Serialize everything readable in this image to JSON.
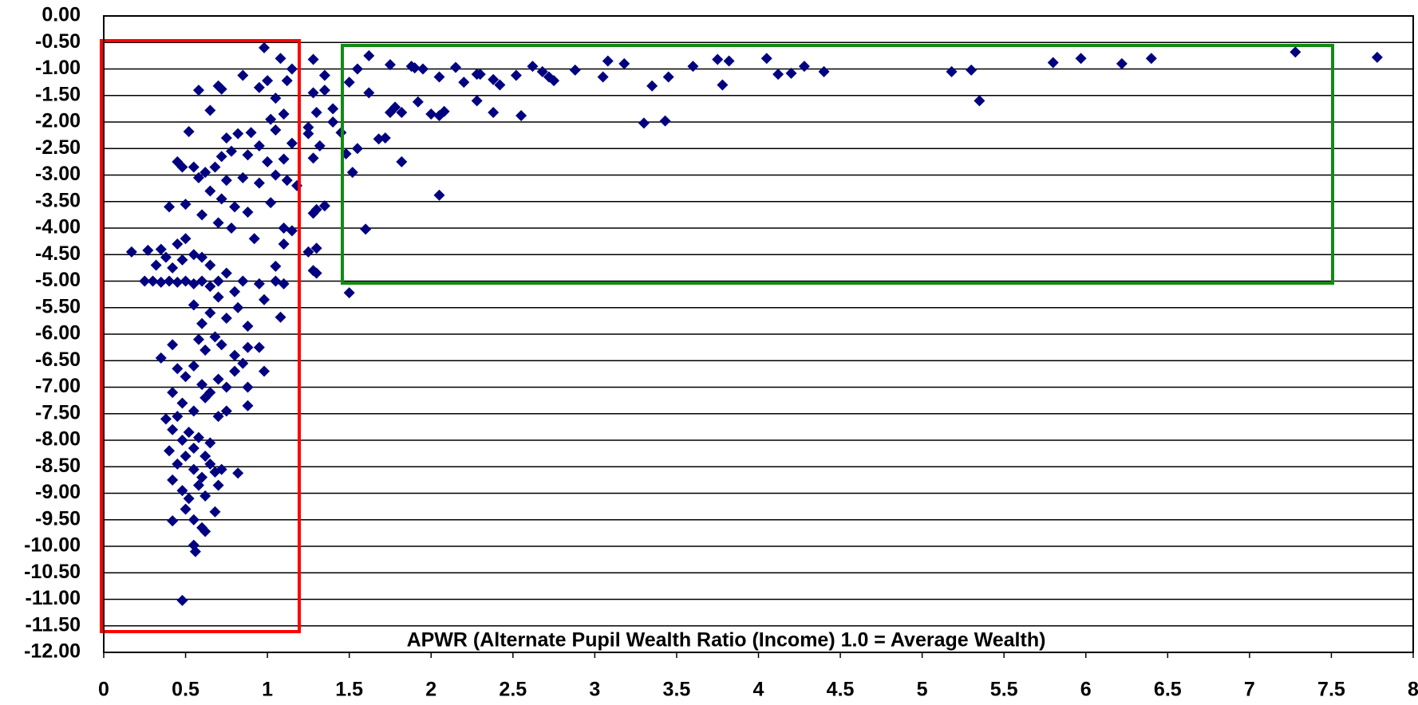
{
  "chart_data": {
    "type": "scatter",
    "x_label": "APWR (Alternate Pupil Wealth Ratio (Income)  1.0 = Average Wealth)",
    "color": "#000080",
    "grid": true,
    "xlim": [
      0,
      8
    ],
    "ylim": [
      -12,
      0
    ],
    "xticks": [
      0,
      0.5,
      1,
      1.5,
      2,
      2.5,
      3,
      3.5,
      4,
      4.5,
      5,
      5.5,
      6,
      6.5,
      7,
      7.5,
      8
    ],
    "yticks": [
      {
        "value": 0,
        "label": "0.00"
      },
      {
        "value": -0.5,
        "label": "-0.50"
      },
      {
        "value": -1,
        "label": "-1.00"
      },
      {
        "value": -1.5,
        "label": "-1.50"
      },
      {
        "value": -2,
        "label": "-2.00"
      },
      {
        "value": -2.5,
        "label": "-2.50"
      },
      {
        "value": -3,
        "label": "-3.00"
      },
      {
        "value": -3.5,
        "label": "-3.50"
      },
      {
        "value": -4,
        "label": "-4.00"
      },
      {
        "value": -4.5,
        "label": "-4.50"
      },
      {
        "value": -5,
        "label": "-5.00"
      },
      {
        "value": -5.5,
        "label": "-5.50"
      },
      {
        "value": -6,
        "label": "-6.00"
      },
      {
        "value": -6.5,
        "label": "-6.50"
      },
      {
        "value": -7,
        "label": "-7.00"
      },
      {
        "value": -7.5,
        "label": "-7.50"
      },
      {
        "value": -8,
        "label": "-8.00"
      },
      {
        "value": -8.5,
        "label": "-8.50"
      },
      {
        "value": -9,
        "label": "-9.00"
      },
      {
        "value": -9.5,
        "label": "-9.50"
      },
      {
        "value": -10,
        "label": "-10.00"
      },
      {
        "value": -10.5,
        "label": "-10.50"
      },
      {
        "value": -11,
        "label": "-11.00"
      },
      {
        "value": -11.5,
        "label": "-11.50"
      },
      {
        "value": -12,
        "label": "-12.00"
      }
    ],
    "x": [
      1.55,
      1.62,
      1.75,
      1.88,
      1.95,
      1.9,
      2.05,
      2.15,
      2.2,
      2.28,
      2.3,
      2.38,
      2.42,
      2.52,
      2.62,
      2.68,
      2.72,
      2.75,
      2.88,
      3.05,
      3.08,
      3.18,
      3.6,
      3.75,
      3.82,
      4.05,
      4.12,
      4.2,
      4.28,
      4.4,
      5.18,
      5.3,
      5.35,
      5.8,
      5.97,
      6.22,
      6.4,
      7.28,
      7.78,
      3.3,
      3.35,
      3.45,
      3.43,
      3.78,
      2.55,
      2.38,
      2.28,
      2.08,
      2.05,
      2.0,
      1.92,
      1.82,
      1.78,
      1.75,
      1.72,
      1.68,
      1.82,
      2.05,
      1.62,
      1.6,
      1.5,
      1.52,
      1.55,
      1.48,
      1.5,
      1.45,
      1.4,
      1.35,
      1.35,
      1.3,
      1.28,
      1.28,
      1.32,
      1.3,
      1.35,
      1.28,
      1.25,
      1.3,
      1.3,
      1.28,
      1.25,
      1.25,
      1.28,
      1.4,
      0.98,
      1.08,
      1.15,
      1.0,
      1.12,
      0.95,
      0.85,
      0.7,
      0.72,
      0.58,
      0.65,
      0.52,
      1.05,
      1.1,
      1.02,
      0.9,
      0.82,
      0.75,
      0.95,
      1.05,
      1.15,
      1.1,
      1.0,
      0.88,
      0.78,
      0.72,
      0.68,
      0.62,
      0.58,
      0.75,
      0.85,
      0.95,
      1.05,
      1.12,
      1.18,
      0.65,
      0.72,
      0.8,
      0.88,
      1.02,
      0.6,
      0.7,
      0.78,
      0.92,
      1.1,
      1.15,
      1.1,
      0.45,
      0.48,
      0.55,
      0.4,
      0.5,
      0.17,
      0.27,
      0.32,
      0.35,
      0.38,
      0.42,
      0.45,
      0.48,
      0.5,
      0.55,
      0.6,
      0.65,
      0.25,
      0.3,
      0.35,
      0.4,
      0.45,
      0.5,
      0.55,
      0.6,
      0.65,
      0.7,
      0.75,
      0.8,
      0.85,
      0.95,
      1.05,
      1.1,
      1.05,
      1.08,
      0.98,
      0.55,
      0.6,
      0.65,
      0.7,
      0.75,
      0.82,
      0.88,
      0.58,
      0.62,
      0.68,
      0.72,
      0.8,
      0.88,
      0.95,
      0.35,
      0.42,
      0.45,
      0.5,
      0.55,
      0.6,
      0.65,
      0.7,
      0.75,
      0.8,
      0.85,
      0.98,
      0.88,
      0.42,
      0.48,
      0.55,
      0.62,
      0.7,
      0.75,
      0.88,
      0.38,
      0.42,
      0.45,
      0.48,
      0.52,
      0.55,
      0.58,
      0.62,
      0.65,
      0.4,
      0.45,
      0.5,
      0.55,
      0.6,
      0.65,
      0.68,
      0.72,
      0.82,
      0.42,
      0.48,
      0.52,
      0.58,
      0.62,
      0.7,
      0.5,
      0.55,
      0.42,
      0.68,
      0.6,
      0.62,
      0.55,
      0.56,
      0.48
    ],
    "values": [
      -1.0,
      -0.75,
      -0.92,
      -0.95,
      -1.0,
      -0.98,
      -1.15,
      -0.97,
      -1.25,
      -1.1,
      -1.1,
      -1.2,
      -1.3,
      -1.12,
      -0.95,
      -1.05,
      -1.15,
      -1.22,
      -1.02,
      -1.15,
      -0.85,
      -0.9,
      -0.95,
      -0.82,
      -0.85,
      -0.8,
      -1.1,
      -1.08,
      -0.95,
      -1.05,
      -1.05,
      -1.02,
      -1.6,
      -0.88,
      -0.8,
      -0.9,
      -0.8,
      -0.68,
      -0.78,
      -2.02,
      -1.32,
      -1.15,
      -1.98,
      -1.3,
      -1.88,
      -1.82,
      -1.6,
      -1.8,
      -1.88,
      -1.85,
      -1.62,
      -1.82,
      -1.72,
      -1.82,
      -2.3,
      -2.32,
      -2.75,
      -3.38,
      -1.45,
      -4.02,
      -5.22,
      -2.95,
      -2.5,
      -2.6,
      -1.25,
      -2.2,
      -1.75,
      -1.4,
      -1.12,
      -1.82,
      -1.45,
      -0.82,
      -2.45,
      -3.65,
      -3.58,
      -3.72,
      -4.45,
      -4.38,
      -4.85,
      -4.8,
      -2.1,
      -2.22,
      -2.68,
      -2.0,
      -0.6,
      -0.8,
      -1.0,
      -1.22,
      -1.22,
      -1.35,
      -1.12,
      -1.32,
      -1.38,
      -1.4,
      -1.78,
      -2.18,
      -1.55,
      -1.85,
      -1.95,
      -2.2,
      -2.22,
      -2.3,
      -2.45,
      -2.15,
      -2.4,
      -2.7,
      -2.75,
      -2.62,
      -2.55,
      -2.65,
      -2.85,
      -2.95,
      -3.05,
      -3.1,
      -3.05,
      -3.15,
      -3.0,
      -3.1,
      -3.2,
      -3.3,
      -3.45,
      -3.6,
      -3.7,
      -3.52,
      -3.75,
      -3.9,
      -4.0,
      -4.2,
      -4.0,
      -4.05,
      -4.3,
      -2.75,
      -2.85,
      -2.85,
      -3.6,
      -3.55,
      -4.45,
      -4.42,
      -4.7,
      -4.4,
      -4.55,
      -4.75,
      -4.3,
      -4.6,
      -4.2,
      -4.5,
      -4.55,
      -4.7,
      -5.0,
      -5.0,
      -5.02,
      -5.0,
      -5.02,
      -5.0,
      -5.05,
      -5.0,
      -5.1,
      -5.0,
      -4.85,
      -5.2,
      -5.0,
      -5.05,
      -5.0,
      -5.05,
      -4.72,
      -5.68,
      -5.35,
      -5.45,
      -5.8,
      -5.6,
      -5.3,
      -5.7,
      -5.5,
      -5.85,
      -6.1,
      -6.3,
      -6.05,
      -6.2,
      -6.4,
      -6.25,
      -6.25,
      -6.45,
      -6.2,
      -6.65,
      -6.8,
      -6.6,
      -6.95,
      -7.1,
      -6.85,
      -7.0,
      -6.7,
      -6.55,
      -6.7,
      -7.0,
      -7.1,
      -7.3,
      -7.45,
      -7.2,
      -7.55,
      -7.45,
      -7.35,
      -7.6,
      -7.8,
      -7.55,
      -8.0,
      -7.85,
      -8.15,
      -7.95,
      -8.3,
      -8.05,
      -8.2,
      -8.45,
      -8.3,
      -8.55,
      -8.7,
      -8.45,
      -8.6,
      -8.55,
      -8.62,
      -8.75,
      -8.95,
      -9.1,
      -8.85,
      -9.05,
      -8.85,
      -9.3,
      -9.5,
      -9.52,
      -9.35,
      -9.65,
      -9.72,
      -9.98,
      -10.1,
      -11.02
    ]
  }
}
